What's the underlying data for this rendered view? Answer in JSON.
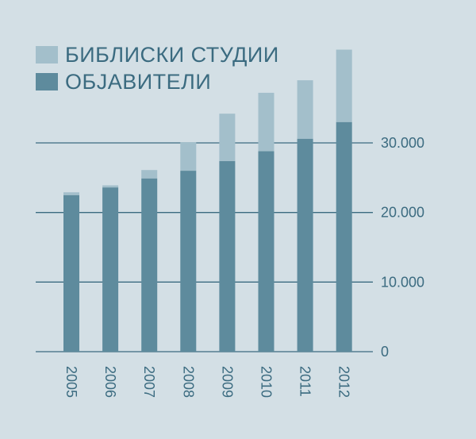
{
  "chart_data": {
    "type": "bar",
    "stacked": true,
    "categories": [
      "2005",
      "2006",
      "2007",
      "2008",
      "2009",
      "2010",
      "2011",
      "2012"
    ],
    "series": [
      {
        "name": "ОБЈАВИТЕЛИ",
        "color": "#5e8b9d",
        "values": [
          22500,
          23600,
          24900,
          26000,
          27400,
          28800,
          30600,
          33000
        ]
      },
      {
        "name": "БИБЛИСКИ СТУДИИ",
        "color": "#a3bfcb",
        "values": [
          400,
          300,
          1200,
          4100,
          6800,
          8400,
          8400,
          10400
        ]
      }
    ],
    "yticks": [
      {
        "value": 0,
        "label": "0"
      },
      {
        "value": 10000,
        "label": "10.000"
      },
      {
        "value": 20000,
        "label": "20.000"
      },
      {
        "value": 30000,
        "label": "30.000"
      }
    ],
    "ylim": [
      0,
      44000
    ],
    "grid": true,
    "legend_position": "top-left",
    "axis_color": "#3b6b80",
    "background": "#d3dfe5"
  }
}
